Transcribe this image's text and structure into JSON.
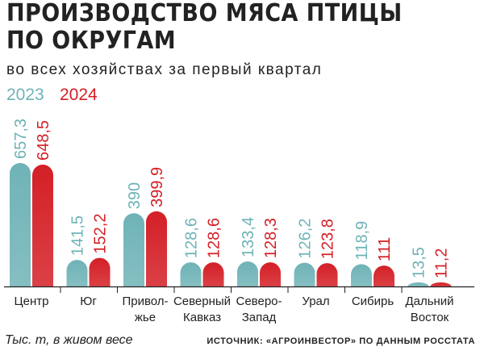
{
  "title_line1": "ПРОИЗВОДСТВО МЯСА ПТИЦЫ",
  "title_line2": "ПО ОКРУГАМ",
  "subtitle": "во всех хозяйствах за первый квартал",
  "footer_left": "Тыс. т, в живом весе",
  "footer_right": "ИСТОЧНИК: «АГРОИНВЕСТОР» ПО ДАННЫМ РОССТАТА",
  "colors": {
    "y2023": "#6fb3b7",
    "y2024": "#d41f26",
    "text": "#444444",
    "axis": "#222222"
  },
  "chart_data": {
    "type": "bar",
    "categories": [
      [
        "Центр"
      ],
      [
        "Юг"
      ],
      [
        "Привол-",
        "жье"
      ],
      [
        "Северный",
        "Кавказ"
      ],
      [
        "Северо-",
        "Запад"
      ],
      [
        "Урал"
      ],
      [
        "Сибирь"
      ],
      [
        "Дальний",
        "Восток"
      ]
    ],
    "series": [
      {
        "name": "2023",
        "values": [
          657.3,
          141.5,
          390,
          128.6,
          133.4,
          126.2,
          118.9,
          13.5
        ],
        "labels": [
          "657,3",
          "141,5",
          "390",
          "128,6",
          "133,4",
          "126,2",
          "118,9",
          "13,5"
        ]
      },
      {
        "name": "2024",
        "values": [
          648.5,
          152.2,
          399.9,
          128.6,
          128.3,
          123.8,
          111,
          11.2
        ],
        "labels": [
          "648,5",
          "152,2",
          "399,9",
          "128,6",
          "128,3",
          "123,8",
          "111",
          "11,2"
        ]
      }
    ],
    "ylim": [
      0,
      657.3
    ],
    "legend_position": "top-left",
    "grid": false,
    "value_labels": "rotated-above-bars"
  }
}
